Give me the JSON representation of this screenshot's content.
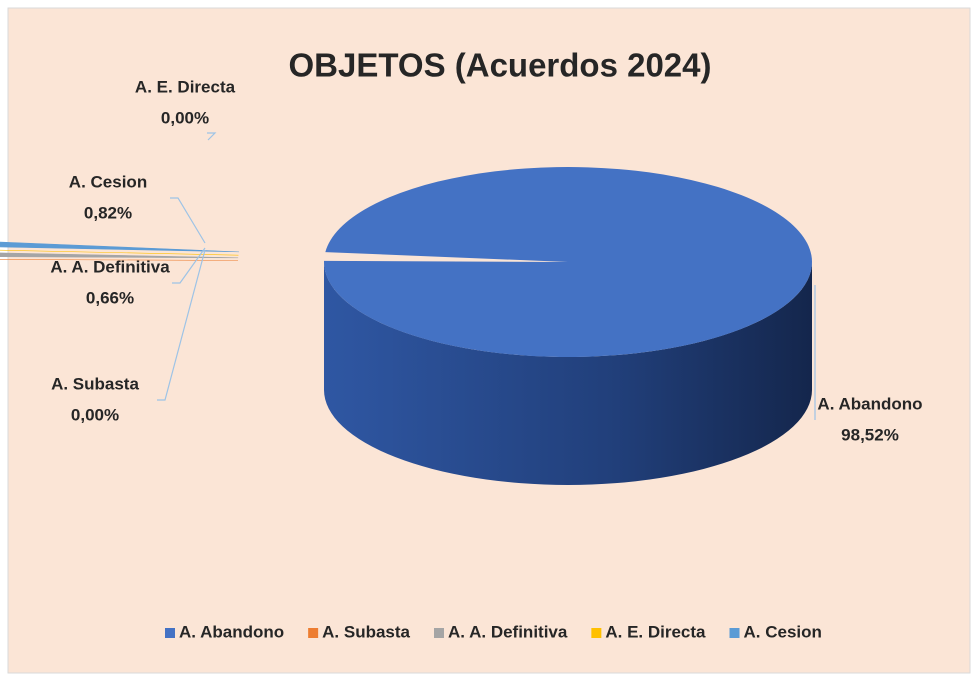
{
  "chart_data": {
    "type": "pie3d",
    "title": "OBJETOS (Acuerdos 2024)",
    "categories": [
      "A. Abandono",
      "A. Subasta",
      "A. A. Definitiva",
      "A. E. Directa",
      "A. Cesion"
    ],
    "values": [
      98.52,
      0.0,
      0.66,
      0.0,
      0.82
    ],
    "value_labels": [
      "98,52%",
      "0,00%",
      "0,66%",
      "0,00%",
      "0,82%"
    ],
    "colors": [
      "#4472c4",
      "#ed7d31",
      "#a5a5a5",
      "#ffc000",
      "#5b9bd5"
    ],
    "legend": "bottom"
  }
}
